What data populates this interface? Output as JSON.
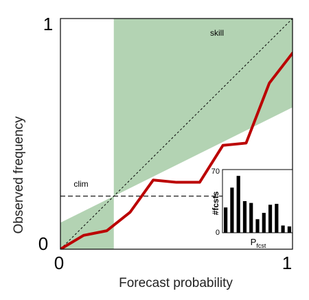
{
  "chart_data": {
    "type": "line",
    "xlabel": "Forecast probability",
    "ylabel": "Observed frequency",
    "xlim": [
      0,
      1
    ],
    "ylim": [
      0,
      1
    ],
    "x_ticks": [
      "0",
      "1"
    ],
    "y_ticks": [
      "0",
      "1"
    ],
    "climatology": 0.23,
    "reliability_curve": {
      "x": [
        0.0,
        0.1,
        0.2,
        0.3,
        0.4,
        0.5,
        0.6,
        0.7,
        0.8,
        0.9,
        1.0
      ],
      "y": [
        0.0,
        0.06,
        0.08,
        0.16,
        0.3,
        0.29,
        0.29,
        0.45,
        0.46,
        0.72,
        0.85
      ],
      "color": "#bb0000"
    },
    "skill_region_color": "#b3d3b3",
    "diagonal_line": "dashed",
    "annotations": {
      "skill": "skill",
      "clim": "clim"
    },
    "inset": {
      "type": "bar",
      "ylabel": "#fcsts",
      "xlabel_main": "P",
      "xlabel_sub": "fcst",
      "ylim": [
        0,
        70
      ],
      "y_ticks": [
        "0",
        "70"
      ],
      "values": [
        28,
        50,
        63,
        35,
        33,
        15,
        22,
        31,
        32,
        8,
        7
      ]
    }
  }
}
